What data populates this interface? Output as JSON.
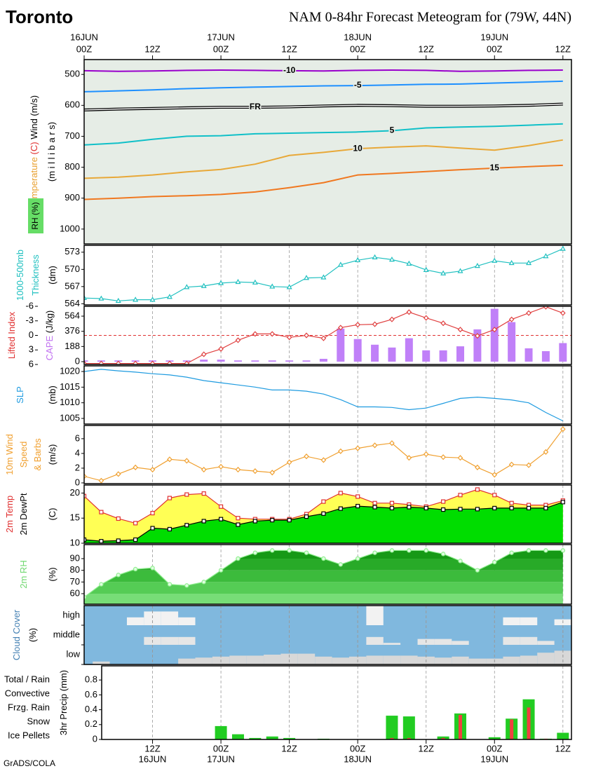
{
  "header": {
    "location": "Toronto",
    "title": "NAM 0-84hr Forecast Meteogram for (79W, 44N)"
  },
  "footer": "GrADS/COLA",
  "time_axis": {
    "x": [
      0,
      3,
      6,
      9,
      12,
      15,
      18,
      21,
      24,
      27,
      30,
      33,
      36,
      39,
      42,
      45,
      48,
      51,
      54,
      57,
      60,
      63,
      66,
      69,
      72,
      75,
      78,
      81,
      84
    ],
    "xlim": [
      0,
      85.5
    ],
    "top_ticks": [
      {
        "value": 0,
        "label": "00Z",
        "date": "16JUN"
      },
      {
        "value": 12,
        "label": "12Z"
      },
      {
        "value": 24,
        "label": "00Z",
        "date": "17JUN"
      },
      {
        "value": 36,
        "label": "12Z"
      },
      {
        "value": 48,
        "label": "00Z",
        "date": "18JUN"
      },
      {
        "value": 60,
        "label": "12Z"
      },
      {
        "value": 72,
        "label": "00Z",
        "date": "19JUN"
      },
      {
        "value": 84,
        "label": "12Z"
      }
    ],
    "bottom_ticks": [
      {
        "value": 12,
        "label": "12Z",
        "date": "16JUN"
      },
      {
        "value": 24,
        "label": "00Z",
        "date": "17JUN"
      },
      {
        "value": 36,
        "label": "12Z"
      },
      {
        "value": 48,
        "label": "00Z",
        "date": "18JUN"
      },
      {
        "value": 60,
        "label": "12Z"
      },
      {
        "value": 72,
        "label": "00Z",
        "date": "19JUN"
      },
      {
        "value": 84,
        "label": "12Z"
      }
    ]
  },
  "chart_data": [
    {
      "type": "isotherms",
      "ylabel": [
        [
          {
            "text": "Temperature",
            "color": "#e8a030"
          },
          {
            "text": " (C) ",
            "color": "#e03030"
          },
          {
            "text": "Wind (m/s)",
            "color": "#000000"
          }
        ],
        [
          {
            "text": "(m i l l i b a r s)",
            "color": "#000000"
          }
        ]
      ],
      "rh_label": "RH (%)",
      "background": "#e6ede6",
      "ylim": [
        1048,
        452
      ],
      "yticks": [
        500,
        600,
        700,
        800,
        900,
        1000
      ],
      "x": [
        0,
        6,
        12,
        18,
        24,
        30,
        36,
        42,
        48,
        54,
        60,
        66,
        72,
        78,
        84
      ],
      "series": [
        {
          "name": "-10",
          "color": "#9900cc",
          "values": [
            488,
            490,
            489,
            487,
            486,
            487,
            488,
            489,
            487,
            486,
            487,
            490,
            489,
            487,
            486
          ]
        },
        {
          "name": "-5",
          "color": "#1e90ff",
          "values": [
            556,
            553,
            550,
            546,
            543,
            541,
            539,
            537,
            536,
            534,
            532,
            531,
            528,
            525,
            522
          ]
        },
        {
          "name": "FR",
          "color": "#000000",
          "values": [
            615,
            612,
            610,
            608,
            606,
            606,
            605,
            602,
            600,
            601,
            603,
            603,
            602,
            600,
            596
          ]
        },
        {
          "name": "5",
          "color": "#10c0c8",
          "values": [
            728,
            722,
            710,
            700,
            698,
            692,
            690,
            688,
            686,
            682,
            673,
            670,
            668,
            664,
            660
          ]
        },
        {
          "name": "10",
          "color": "#e8a838",
          "values": [
            836,
            832,
            825,
            815,
            807,
            790,
            762,
            752,
            740,
            735,
            731,
            738,
            745,
            730,
            712
          ]
        },
        {
          "name": "15",
          "color": "#f07820",
          "values": [
            904,
            900,
            895,
            892,
            888,
            880,
            866,
            850,
            825,
            820,
            814,
            808,
            803,
            798,
            794
          ]
        }
      ]
    },
    {
      "type": "line",
      "ylabel": [
        [
          {
            "text": "1000-500mb",
            "color": "#20c0c0"
          }
        ],
        [
          {
            "text": "Thickness",
            "color": "#20c0c0"
          }
        ],
        [
          {
            "text": "(dm)",
            "color": "#000000"
          }
        ]
      ],
      "ylim": [
        563.8,
        574.2
      ],
      "yticks": [
        564,
        567,
        570,
        573
      ],
      "series": [
        {
          "color": "#20c0c0",
          "marker": "triangle",
          "values": [
            565,
            564.9,
            564.5,
            564.7,
            564.7,
            565.2,
            566.9,
            567.1,
            567.6,
            567.8,
            567.7,
            567,
            566.9,
            568.5,
            568.6,
            570.8,
            571.6,
            572.1,
            571.7,
            571,
            569.9,
            569.3,
            569.7,
            570.6,
            571.5,
            571.1,
            571.1,
            572.3,
            573.6
          ]
        }
      ]
    },
    {
      "type": "line",
      "ylabel": [
        [
          {
            "text": "Lifted Index",
            "color": "#e03030"
          }
        ],
        [
          {
            "text": "CAPE",
            "color": "#c070f0"
          },
          {
            "text": "  (J/kg)",
            "color": "#000000"
          }
        ]
      ],
      "ylim": [
        6,
        -6
      ],
      "yticks": [
        -6,
        -3,
        0,
        3,
        6
      ],
      "y2lim": [
        -35,
        686
      ],
      "y2ticks": [
        0,
        188,
        376,
        564
      ],
      "series": [
        {
          "color": "#c080f8",
          "axis": "y2",
          "kind": "bar",
          "values": [
            15,
            15,
            15,
            15,
            15,
            15,
            15,
            25,
            25,
            15,
            15,
            15,
            15,
            15,
            35,
            410,
            280,
            210,
            175,
            290,
            140,
            140,
            190,
            400,
            655,
            490,
            165,
            130,
            230
          ]
        },
        {
          "color": "#e04040",
          "marker": "diamond",
          "values": [
            5.8,
            5.8,
            5.8,
            5.8,
            5.8,
            5.8,
            5.8,
            3.9,
            2.8,
            1,
            -0.3,
            -0.3,
            0.4,
            0,
            0.6,
            -1.6,
            -2.2,
            -2.3,
            -3.3,
            -4.8,
            -3.6,
            -2.5,
            -1.2,
            0.1,
            -1.2,
            -3.3,
            -4.6,
            -5.9,
            -4.6
          ]
        }
      ]
    },
    {
      "type": "line",
      "ylabel": [
        [
          {
            "text": "SLP",
            "color": "#1e9be0"
          }
        ],
        [
          {
            "text": "(mb)",
            "color": "#000000"
          }
        ]
      ],
      "ylim": [
        1003.2,
        1021.8
      ],
      "yticks": [
        1005,
        1010,
        1015,
        1020
      ],
      "series": [
        {
          "color": "#1e9be0",
          "values": [
            1020,
            1020.7,
            1020.2,
            1019.8,
            1019.3,
            1018.9,
            1018.2,
            1017.1,
            1016.4,
            1015.7,
            1015,
            1014.1,
            1014.1,
            1013.7,
            1012.8,
            1011,
            1008.7,
            1008.7,
            1008.5,
            1007.8,
            1008.3,
            1009.8,
            1011.4,
            1011.8,
            1011.4,
            1010.9,
            1010,
            1006.9,
            1004.2
          ]
        }
      ]
    },
    {
      "type": "line",
      "ylabel": [
        [
          {
            "text": "10m Wind",
            "color": "#f0a030"
          }
        ],
        [
          {
            "text": "Speed",
            "color": "#f0a030"
          }
        ],
        [
          {
            "text": "& Barbs",
            "color": "#f0a030"
          }
        ],
        [
          {
            "text": "(m/s)",
            "color": "#000000"
          }
        ]
      ],
      "ylim": [
        -0.1,
        7.8
      ],
      "yticks": [
        0,
        2,
        4,
        6
      ],
      "series": [
        {
          "color": "#f0a030",
          "marker": "diamond",
          "values": [
            0.9,
            0.3,
            1.2,
            2.1,
            1.8,
            3.2,
            3,
            1.8,
            2.2,
            1.8,
            1.6,
            1.4,
            2.8,
            3.6,
            3.1,
            4.3,
            4.7,
            5.1,
            5.4,
            3.4,
            3.9,
            3.5,
            3.4,
            2.1,
            1.1,
            2.5,
            2.4,
            4.2,
            7.3
          ]
        }
      ]
    },
    {
      "type": "line",
      "ylabel": [
        [
          {
            "text": "2m Temp",
            "color": "#e03030"
          }
        ],
        [
          {
            "text": "2m DewPt",
            "color": "#000000"
          }
        ],
        [
          {
            "text": "(C)",
            "color": "#000000"
          }
        ]
      ],
      "ylim": [
        10,
        21.6
      ],
      "yticks": [
        10,
        15,
        20
      ],
      "series": [
        {
          "color": "#e03030",
          "fill": "#ffff55",
          "marker": "square",
          "values": [
            19.4,
            16.2,
            14.9,
            14,
            16,
            19,
            19.7,
            19.9,
            17.3,
            15,
            14.8,
            14.8,
            14.8,
            15.8,
            18.3,
            20,
            19.3,
            18,
            18,
            17.7,
            17.3,
            18.3,
            19.6,
            20.7,
            19.6,
            18,
            17.6,
            17.6,
            18.5
          ]
        },
        {
          "color": "#000000",
          "fill": "#00dd00",
          "marker": "square",
          "values": [
            10.7,
            10.4,
            10.5,
            10.7,
            13,
            12.8,
            13.6,
            14.4,
            14.8,
            13.7,
            14.4,
            14.6,
            14.6,
            15.3,
            15.9,
            16.9,
            17.4,
            17.2,
            17,
            17.2,
            17,
            16.7,
            16.8,
            16.8,
            17,
            17,
            17,
            17,
            18.2
          ]
        }
      ]
    },
    {
      "type": "area",
      "ylabel": [
        [
          {
            "text": "2m RH",
            "color": "#70d870"
          }
        ],
        [
          {
            "text": "(%)",
            "color": "#000000"
          }
        ]
      ],
      "ylim": [
        51,
        102
      ],
      "yticks": [
        60,
        70,
        80,
        90
      ],
      "bands": [
        "#77dd77",
        "#55cc55",
        "#3cbb3c",
        "#28aa28",
        "#169916"
      ],
      "series": [
        {
          "color": "#90ee90",
          "marker": "circle",
          "values": [
            57,
            68,
            76,
            81,
            82,
            68,
            67,
            70,
            80,
            90,
            95,
            97,
            97,
            95,
            90,
            85,
            90,
            95,
            97,
            97,
            97,
            94,
            88,
            80,
            87,
            95,
            97,
            97,
            97
          ]
        }
      ]
    },
    {
      "type": "cloud",
      "ylabel": [
        [
          {
            "text": "Cloud Cover",
            "color": "#4682b4"
          }
        ],
        [
          {
            "text": "(%)",
            "color": "#000000"
          }
        ]
      ],
      "sky_color": "#80b8de",
      "ylim": [
        0,
        100
      ],
      "series": [
        {
          "name": "high",
          "color": "#f2f2f2",
          "values": [
            0,
            0,
            0,
            40,
            70,
            70,
            40,
            0,
            0,
            0,
            0,
            0,
            0,
            0,
            0,
            0,
            0,
            100,
            0,
            0,
            0,
            0,
            0,
            0,
            0,
            40,
            40,
            0,
            30
          ]
        },
        {
          "name": "middle",
          "color": "#e6e6e6",
          "values": [
            0,
            0,
            0,
            0,
            40,
            40,
            40,
            0,
            0,
            0,
            0,
            0,
            0,
            0,
            0,
            0,
            0,
            40,
            10,
            0,
            30,
            30,
            20,
            0,
            0,
            40,
            40,
            20,
            0
          ]
        },
        {
          "name": "low",
          "color": "#d8d8d8",
          "values": [
            0,
            15,
            0,
            0,
            0,
            0,
            30,
            35,
            40,
            45,
            45,
            50,
            55,
            55,
            40,
            35,
            40,
            45,
            45,
            45,
            40,
            35,
            40,
            30,
            30,
            40,
            45,
            60,
            70
          ]
        }
      ]
    },
    {
      "type": "bar",
      "ylabel": [
        [
          {
            "text": "3hr Precip (mm)",
            "color": "#000000"
          }
        ]
      ],
      "ylim": [
        0,
        0.99
      ],
      "yticks": [
        0,
        0.2,
        0.4,
        0.6,
        0.8
      ],
      "series": [
        {
          "name": "Total / Rain",
          "color": "#22cc22",
          "values": [
            0,
            0,
            0,
            0,
            0,
            0,
            0,
            0,
            0.18,
            0.07,
            0.02,
            0.04,
            0.02,
            0,
            0.01,
            0,
            0,
            0,
            0.32,
            0.31,
            0,
            0.04,
            0.35,
            0,
            0.03,
            0.28,
            0.54,
            0.01,
            0.09
          ]
        },
        {
          "name": "Convective",
          "color": "#f04040",
          "values": [
            0,
            0,
            0,
            0,
            0,
            0,
            0,
            0,
            0,
            0,
            0,
            0,
            0,
            0,
            0,
            0,
            0,
            0,
            0.02,
            0.02,
            0,
            0.02,
            0.33,
            0,
            0,
            0.27,
            0.43,
            0.01,
            0
          ]
        },
        {
          "name": "Frzg. Rain",
          "color": "#f09030",
          "values": [
            0,
            0,
            0,
            0,
            0,
            0,
            0,
            0,
            0,
            0,
            0,
            0,
            0,
            0,
            0,
            0,
            0,
            0,
            0,
            0,
            0,
            0,
            0,
            0,
            0,
            0,
            0,
            0,
            0
          ]
        },
        {
          "name": "Snow",
          "color": "#3050f0",
          "values": [
            0,
            0,
            0,
            0,
            0,
            0,
            0,
            0,
            0,
            0,
            0,
            0,
            0,
            0,
            0,
            0,
            0,
            0,
            0,
            0,
            0,
            0,
            0,
            0,
            0,
            0,
            0,
            0,
            0
          ]
        },
        {
          "name": "Ice Pellets",
          "color": "#20c8d8",
          "values": [
            0,
            0,
            0,
            0,
            0,
            0,
            0,
            0,
            0,
            0,
            0,
            0,
            0,
            0,
            0,
            0,
            0,
            0,
            0,
            0,
            0,
            0,
            0,
            0,
            0,
            0,
            0,
            0,
            0
          ]
        }
      ]
    }
  ]
}
